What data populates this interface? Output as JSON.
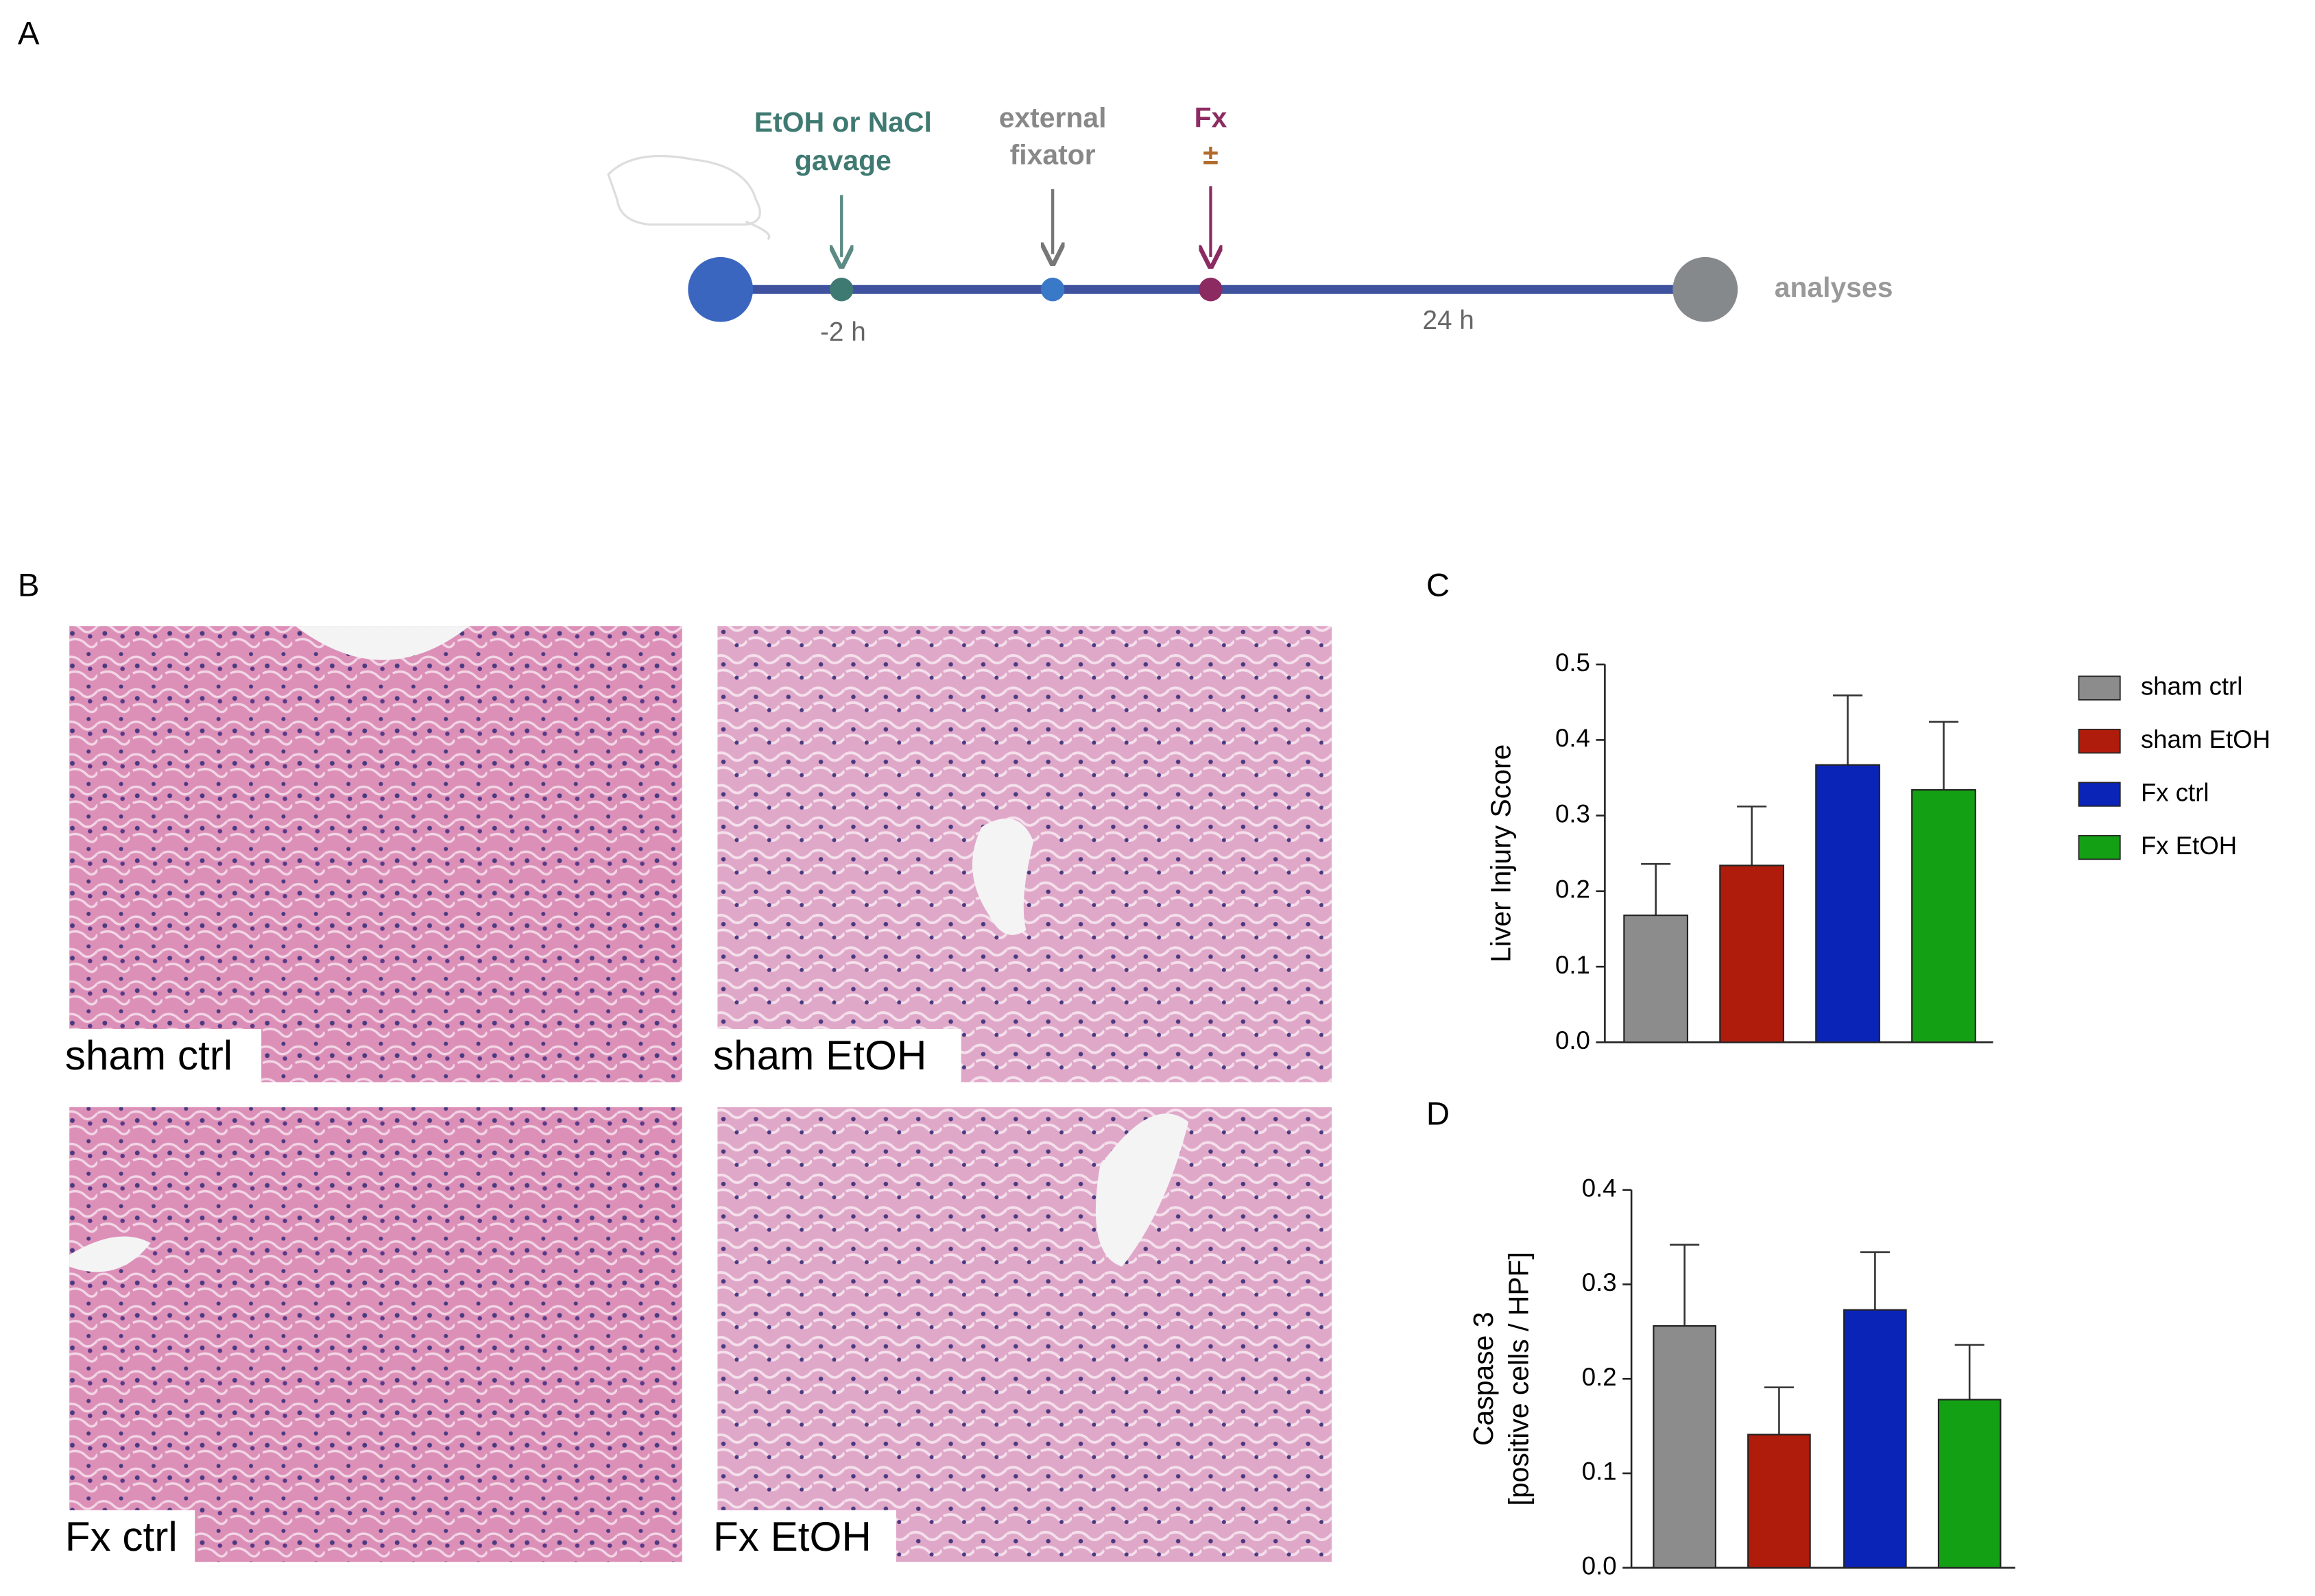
{
  "panel_labels": [
    "A",
    "B",
    "C",
    "D"
  ],
  "timeline": {
    "gavage": [
      "EtOH or NaCl",
      "gavage"
    ],
    "fixator": [
      "external",
      "fixator"
    ],
    "fx": "Fx",
    "pm": "±",
    "minus2h": "-2 h",
    "h24": "24 h",
    "analyses": "analyses"
  },
  "micrographs": [
    "sham ctrl",
    "sham EtOH",
    "Fx ctrl",
    "Fx EtOH"
  ],
  "chart_data": [
    {
      "type": "bar",
      "ylabel": [
        "Liver Injury Score"
      ],
      "categories": [
        "sham ctrl",
        "sham EtOH",
        "Fx ctrl",
        "Fx EtOH"
      ],
      "values": [
        0.168,
        0.234,
        0.367,
        0.334
      ],
      "errors": [
        0.068,
        0.078,
        0.092,
        0.09
      ],
      "colors": [
        "#8c8c8c",
        "#b01c0c",
        "#0a24b8",
        "#14a014"
      ],
      "ylim": [
        0,
        0.5
      ],
      "yticks": [
        {
          "value": 0,
          "label": "0.0"
        },
        0.1,
        0.2,
        0.3,
        0.4,
        0.5
      ],
      "legend": "right"
    },
    {
      "type": "bar",
      "ylabel": [
        "Caspase 3",
        "[positive cells / HPF]"
      ],
      "categories": [
        "sham ctrl",
        "sham EtOH",
        "Fx ctrl",
        "Fx EtOH"
      ],
      "values": [
        0.256,
        0.141,
        0.273,
        0.178
      ],
      "errors": [
        0.086,
        0.05,
        0.061,
        0.058
      ],
      "colors": [
        "#8c8c8c",
        "#b01c0c",
        "#0a24b8",
        "#14a014"
      ],
      "ylim": [
        0,
        0.4
      ],
      "yticks": [
        {
          "value": 0,
          "label": "0.0"
        },
        0.1,
        0.2,
        0.3,
        0.4
      ]
    }
  ]
}
